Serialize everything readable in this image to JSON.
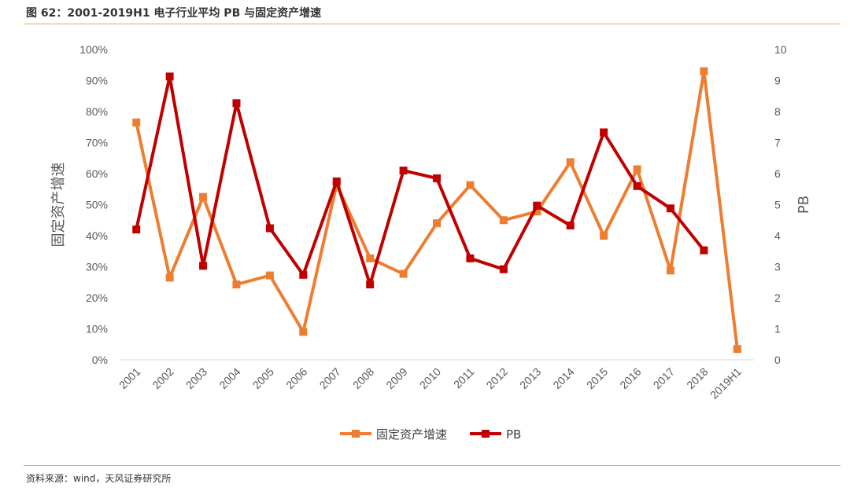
{
  "header": {
    "title": "图 62：2001-2019H1 电子行业平均 PB 与固定资产增速"
  },
  "footer": {
    "source": "资料来源：wind，天风证券研究所"
  },
  "colors": {
    "fixed_asset_growth": "#ed7d31",
    "pb": "#c00000",
    "rule": "#f0a35c"
  },
  "chart_data": {
    "type": "line",
    "categories": [
      "2001",
      "2002",
      "2003",
      "2004",
      "2005",
      "2006",
      "2007",
      "2008",
      "2009",
      "2010",
      "2011",
      "2012",
      "2013",
      "2014",
      "2015",
      "2016",
      "2017",
      "2018",
      "2019H1"
    ],
    "series": [
      {
        "name": "固定资产增速",
        "axis": "left",
        "values": [
          0.765,
          0.265,
          0.525,
          0.243,
          0.272,
          0.09,
          0.565,
          0.327,
          0.277,
          0.44,
          0.563,
          0.45,
          0.478,
          0.637,
          0.4,
          0.614,
          0.288,
          0.93,
          0.035
        ]
      },
      {
        "name": "PB",
        "axis": "right",
        "values": [
          4.2,
          9.13,
          3.03,
          8.27,
          4.24,
          2.74,
          5.75,
          2.43,
          6.1,
          5.85,
          3.27,
          2.92,
          4.97,
          4.33,
          7.33,
          5.6,
          4.88,
          3.53,
          null
        ]
      }
    ],
    "yleft": {
      "label": "固定资产增速",
      "lim": [
        0,
        1.0
      ],
      "ticks": [
        "0%",
        "10%",
        "20%",
        "30%",
        "40%",
        "50%",
        "60%",
        "70%",
        "80%",
        "90%",
        "100%"
      ]
    },
    "yright": {
      "label": "PB",
      "lim": [
        0,
        10
      ],
      "ticks": [
        "0",
        "1",
        "2",
        "3",
        "4",
        "5",
        "6",
        "7",
        "8",
        "9",
        "10"
      ]
    },
    "legend": {
      "position": "bottom-center",
      "entries": [
        "固定资产增速",
        "PB"
      ]
    },
    "grid": false
  }
}
